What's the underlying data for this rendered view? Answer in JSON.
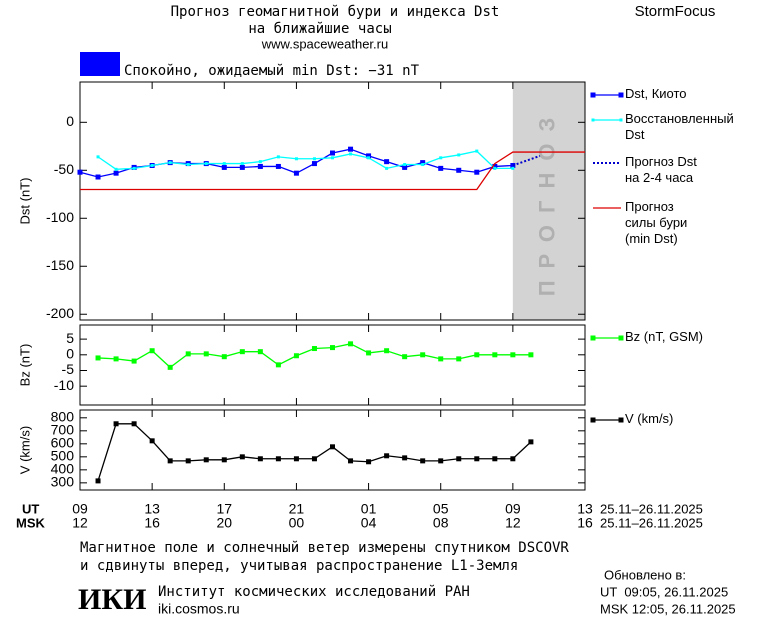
{
  "header": {
    "title": "Прогноз геомагнитной бури и индекса Dst",
    "subtitle": "на ближайшие часы",
    "url": "www.spaceweather.ru",
    "brand": "StormFocus"
  },
  "status": {
    "text": "Спокойно, ожидаемый min Dst: −31 nT",
    "color": "#0000ff"
  },
  "x_axis": {
    "row_labels": [
      "UT",
      "MSK"
    ],
    "date_range": "25.11–26.11.2025"
  },
  "chart_data": [
    {
      "type": "line",
      "ylabel": "Dst (nT)",
      "xlim": [
        0,
        28
      ],
      "ylim": [
        -206,
        42
      ],
      "yticks": [
        0,
        -50,
        -100,
        -150,
        -200
      ],
      "forecast_region": {
        "x": [
          24,
          28
        ],
        "label": "ПРОГНОЗ",
        "color": "#d3d3d3"
      },
      "series": [
        {
          "name": "Dst, Киото",
          "color": "#0000ff",
          "marker": "square",
          "linestyle": "solid",
          "x": [
            0,
            1,
            2,
            3,
            4,
            5,
            6,
            7,
            8,
            9,
            10,
            11,
            12,
            13,
            14,
            15,
            16,
            17,
            18,
            19,
            20,
            21,
            22,
            23,
            24
          ],
          "values": [
            -52,
            -57,
            -53,
            -47,
            -45,
            -42,
            -43,
            -43,
            -47,
            -47,
            -46,
            -46,
            -53,
            -43,
            -32,
            -28,
            -35,
            -41,
            -47,
            -42,
            -48,
            -50,
            -52,
            -46,
            -45
          ]
        },
        {
          "name": "Восстановленный\nDst",
          "color": "#00ffff",
          "marker": "small",
          "linestyle": "solid",
          "x": [
            1,
            2,
            3,
            4,
            5,
            6,
            7,
            8,
            9,
            10,
            11,
            12,
            13,
            14,
            15,
            16,
            17,
            18,
            19,
            20,
            21,
            22,
            23,
            24
          ],
          "values": [
            -36,
            -49,
            -48,
            -45,
            -42,
            -44,
            -43,
            -43,
            -43,
            -41,
            -36,
            -38,
            -38,
            -37,
            -33,
            -37,
            -48,
            -44,
            -44,
            -37,
            -34,
            -30,
            -48,
            -48
          ]
        },
        {
          "name": "Прогноз Dst\nна 2-4 часа",
          "color": "#0000cc",
          "marker": "none",
          "linestyle": "dotted",
          "x": [
            24,
            25.5
          ],
          "values": [
            -45,
            -35
          ]
        },
        {
          "name": "Прогноз\nсилы бури\n(min Dst)",
          "color": "#dd0000",
          "marker": "none",
          "linestyle": "solid",
          "x": [
            0,
            22,
            23,
            24,
            28
          ],
          "values": [
            -70,
            -70,
            -43,
            -31,
            -31
          ]
        }
      ]
    },
    {
      "type": "line",
      "ylabel": "Bz (nT)",
      "xlim": [
        0,
        28
      ],
      "ylim": [
        -16,
        9.5
      ],
      "yticks": [
        5,
        0,
        -5,
        -10
      ],
      "series": [
        {
          "name": "Bz (nT, GSM)",
          "color": "#00ff00",
          "marker": "square",
          "linestyle": "solid",
          "x": [
            1,
            2,
            3,
            4,
            5,
            6,
            7,
            8,
            9,
            10,
            11,
            12,
            13,
            14,
            15,
            16,
            17,
            18,
            19,
            20,
            21,
            22,
            23,
            24,
            25
          ],
          "values": [
            -1,
            -1.3,
            -2,
            1.3,
            -4,
            0.3,
            0.3,
            -0.6,
            1,
            1,
            -3.2,
            -0.3,
            2,
            2.3,
            3.5,
            0.6,
            1.3,
            -0.6,
            0,
            -1.3,
            -1.3,
            0,
            0,
            0,
            0
          ]
        }
      ]
    },
    {
      "type": "line",
      "ylabel": "V (km/s)",
      "xlim": [
        0,
        28
      ],
      "ylim": [
        245,
        860
      ],
      "yticks": [
        800,
        700,
        600,
        500,
        400,
        300
      ],
      "xticks": [
        {
          "value": 0,
          "label": "09"
        },
        {
          "value": 4,
          "label": "13"
        },
        {
          "value": 8,
          "label": "17"
        },
        {
          "value": 12,
          "label": "21"
        },
        {
          "value": 16,
          "label": "01"
        },
        {
          "value": 20,
          "label": "05"
        },
        {
          "value": 24,
          "label": "09"
        },
        {
          "value": 28,
          "label": "13"
        }
      ],
      "xticks_msk": [
        "12",
        "16",
        "20",
        "00",
        "04",
        "08",
        "12",
        "16"
      ],
      "series": [
        {
          "name": "V (km/s)",
          "color": "#000000",
          "marker": "square",
          "linestyle": "solid",
          "x": [
            1,
            2,
            3,
            4,
            5,
            6,
            7,
            8,
            9,
            10,
            11,
            12,
            13,
            14,
            15,
            16,
            17,
            18,
            19,
            20,
            21,
            22,
            23,
            24,
            25
          ],
          "values": [
            315,
            754,
            754,
            623,
            469,
            469,
            477,
            477,
            500,
            485,
            485,
            485,
            485,
            577,
            469,
            462,
            508,
            492,
            469,
            469,
            485,
            485,
            485,
            485,
            615
          ]
        }
      ]
    }
  ],
  "footer": {
    "note_line1": "Магнитное поле и солнечный ветер измерены спутником DSCOVR",
    "note_line2": "и сдвинуты вперед, учитывая распространение L1-Земля",
    "logo": "ИКИ",
    "institute": "Институт космических исследований РАН",
    "site": "iki.cosmos.ru",
    "updated_label": "Обновлено в:",
    "updated_ut": "UT  09:05, 26.11.2025",
    "updated_msk": "MSK 12:05, 26.11.2025"
  }
}
